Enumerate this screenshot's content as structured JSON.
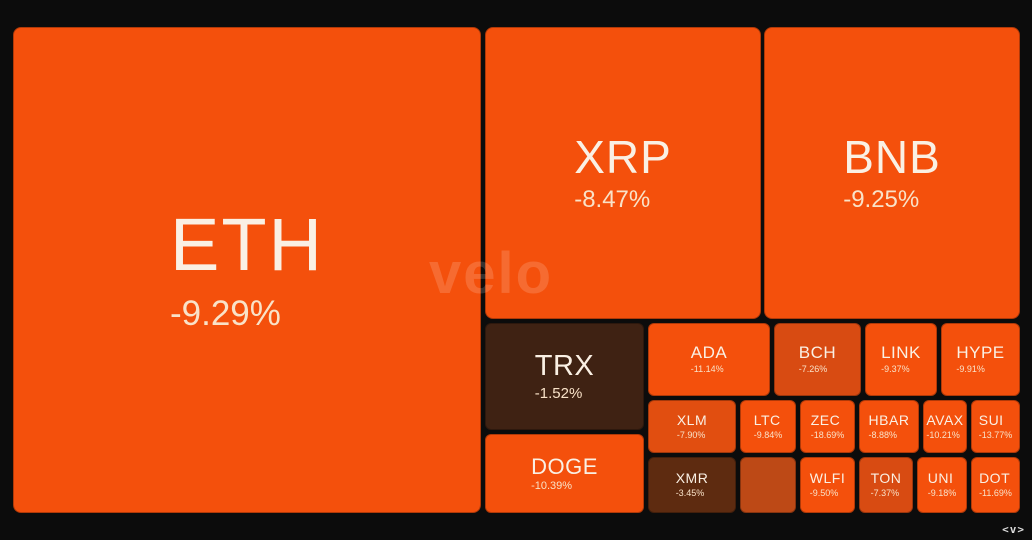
{
  "branding": {
    "watermark": "velo",
    "logo": "<v>"
  },
  "colors": {
    "background": "#0c0c0c",
    "tile_bright": "#f4500c",
    "tile_dim": "#d84b12",
    "tile_dim2": "#e14e10",
    "tile_dark": "#5e2b10",
    "tile_darkest": "#3f2213",
    "tile_mid": "#bd4916",
    "symbol_text": "#faf0e4",
    "change_text": "#f9e2c8"
  },
  "tiles": {
    "eth": {
      "symbol": "ETH",
      "change": "-9.29%"
    },
    "xrp": {
      "symbol": "XRP",
      "change": "-8.47%"
    },
    "bnb": {
      "symbol": "BNB",
      "change": "-9.25%"
    },
    "trx": {
      "symbol": "TRX",
      "change": "-1.52%"
    },
    "doge": {
      "symbol": "DOGE",
      "change": "-10.39%"
    },
    "ada": {
      "symbol": "ADA",
      "change": "-11.14%"
    },
    "bch": {
      "symbol": "BCH",
      "change": "-7.26%"
    },
    "link": {
      "symbol": "LINK",
      "change": "-9.37%"
    },
    "hype": {
      "symbol": "HYPE",
      "change": "-9.91%"
    },
    "xlm": {
      "symbol": "XLM",
      "change": "-7.90%"
    },
    "ltc": {
      "symbol": "LTC",
      "change": "-9.84%"
    },
    "zec": {
      "symbol": "ZEC",
      "change": "-18.69%"
    },
    "hbar": {
      "symbol": "HBAR",
      "change": "-8.88%"
    },
    "avax": {
      "symbol": "AVAX",
      "change": "-10.21%"
    },
    "sui": {
      "symbol": "SUI",
      "change": "-13.77%"
    },
    "xmr": {
      "symbol": "XMR",
      "change": "-3.45%"
    },
    "unlabeled": {
      "symbol": "",
      "change": ""
    },
    "wlfi": {
      "symbol": "WLFI",
      "change": "-9.50%"
    },
    "ton": {
      "symbol": "TON",
      "change": "-7.37%"
    },
    "uni": {
      "symbol": "UNI",
      "change": "-9.18%"
    },
    "dot": {
      "symbol": "DOT",
      "change": "-11.69%"
    }
  },
  "chart_data": {
    "type": "heatmap",
    "subtype": "treemap",
    "title": "",
    "unit": "percent change",
    "watermark": "velo",
    "tiles": [
      {
        "symbol": "ETH",
        "change_pct": -9.29,
        "size": "xl"
      },
      {
        "symbol": "XRP",
        "change_pct": -8.47,
        "size": "large"
      },
      {
        "symbol": "BNB",
        "change_pct": -9.25,
        "size": "large"
      },
      {
        "symbol": "TRX",
        "change_pct": -1.52,
        "size": "medium"
      },
      {
        "symbol": "DOGE",
        "change_pct": -10.39,
        "size": "medium"
      },
      {
        "symbol": "ADA",
        "change_pct": -11.14,
        "size": "small"
      },
      {
        "symbol": "BCH",
        "change_pct": -7.26,
        "size": "small"
      },
      {
        "symbol": "LINK",
        "change_pct": -9.37,
        "size": "small"
      },
      {
        "symbol": "HYPE",
        "change_pct": -9.91,
        "size": "small"
      },
      {
        "symbol": "XLM",
        "change_pct": -7.9,
        "size": "xsmall"
      },
      {
        "symbol": "LTC",
        "change_pct": -9.84,
        "size": "xsmall"
      },
      {
        "symbol": "ZEC",
        "change_pct": -18.69,
        "size": "xsmall"
      },
      {
        "symbol": "HBAR",
        "change_pct": -8.88,
        "size": "xsmall"
      },
      {
        "symbol": "AVAX",
        "change_pct": -10.21,
        "size": "xsmall"
      },
      {
        "symbol": "SUI",
        "change_pct": -13.77,
        "size": "xsmall"
      },
      {
        "symbol": "XMR",
        "change_pct": -3.45,
        "size": "xsmall"
      },
      {
        "symbol": "",
        "change_pct": null,
        "size": "xsmall"
      },
      {
        "symbol": "WLFI",
        "change_pct": -9.5,
        "size": "xsmall"
      },
      {
        "symbol": "TON",
        "change_pct": -7.37,
        "size": "xsmall"
      },
      {
        "symbol": "UNI",
        "change_pct": -9.18,
        "size": "xsmall"
      },
      {
        "symbol": "DOT",
        "change_pct": -11.69,
        "size": "xsmall"
      }
    ],
    "color_scale": {
      "description": "darker toward 0%, saturated bright orange below ~-8.5%",
      "bright": "#f4500c",
      "dim": "#d84b12",
      "mid": "#bd4916",
      "dark": "#5e2b10",
      "darkest": "#3f2213"
    }
  }
}
